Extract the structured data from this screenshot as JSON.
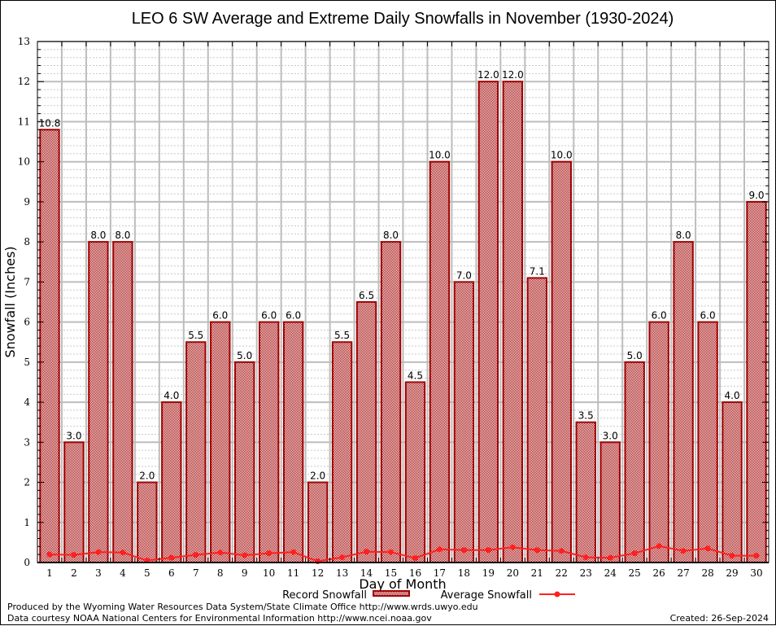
{
  "chart_data": {
    "type": "bar",
    "title": "LEO 6 SW Average and Extreme Daily Snowfalls in November (1930-2024)",
    "xlabel": "Day of Month",
    "ylabel": "Snowfall (Inches)",
    "ylim": [
      0,
      13
    ],
    "yticks": [
      0,
      1,
      2,
      3,
      4,
      5,
      6,
      7,
      8,
      9,
      10,
      11,
      12,
      13
    ],
    "grid": true,
    "categories": [
      "1",
      "2",
      "3",
      "4",
      "5",
      "6",
      "7",
      "8",
      "9",
      "10",
      "11",
      "12",
      "13",
      "14",
      "15",
      "16",
      "17",
      "18",
      "19",
      "20",
      "21",
      "22",
      "23",
      "24",
      "25",
      "26",
      "27",
      "28",
      "29",
      "30"
    ],
    "series": [
      {
        "name": "Record Snowfall",
        "type": "bar",
        "color": "#a00000",
        "values": [
          10.8,
          3.0,
          8.0,
          8.0,
          2.0,
          4.0,
          5.5,
          6.0,
          5.0,
          6.0,
          6.0,
          2.0,
          5.5,
          6.5,
          8.0,
          4.5,
          10.0,
          7.0,
          12.0,
          12.0,
          7.1,
          10.0,
          3.5,
          3.0,
          5.0,
          6.0,
          8.0,
          6.0,
          4.0,
          9.0
        ],
        "labels": [
          "10.8",
          "3.0",
          "8.0",
          "8.0",
          "2.0",
          "4.0",
          "5.5",
          "6.0",
          "5.0",
          "6.0",
          "6.0",
          "2.0",
          "5.5",
          "6.5",
          "8.0",
          "4.5",
          "10.0",
          "7.0",
          "12.0",
          "12.0",
          "7.1",
          "10.0",
          "3.5",
          "3.0",
          "5.0",
          "6.0",
          "8.0",
          "6.0",
          "4.0",
          "9.0"
        ]
      },
      {
        "name": "Average Snowfall",
        "type": "line",
        "color": "#ff2020",
        "values": [
          0.2,
          0.19,
          0.26,
          0.25,
          0.05,
          0.12,
          0.19,
          0.25,
          0.18,
          0.23,
          0.26,
          0.03,
          0.13,
          0.27,
          0.26,
          0.11,
          0.33,
          0.31,
          0.31,
          0.38,
          0.31,
          0.29,
          0.13,
          0.12,
          0.23,
          0.41,
          0.29,
          0.35,
          0.17,
          0.17
        ]
      }
    ],
    "legend": {
      "placement": "bottom-center",
      "entries": [
        "Record Snowfall",
        "Average Snowfall"
      ]
    }
  },
  "footer": {
    "line1": "Produced by the Wyoming Water Resources Data System/State Climate Office http://www.wrds.uwyo.edu",
    "line2": "Data courtesy NOAA National Centers for Environmental Information http://www.ncei.noaa.gov",
    "created": "Created:  26-Sep-2024"
  }
}
